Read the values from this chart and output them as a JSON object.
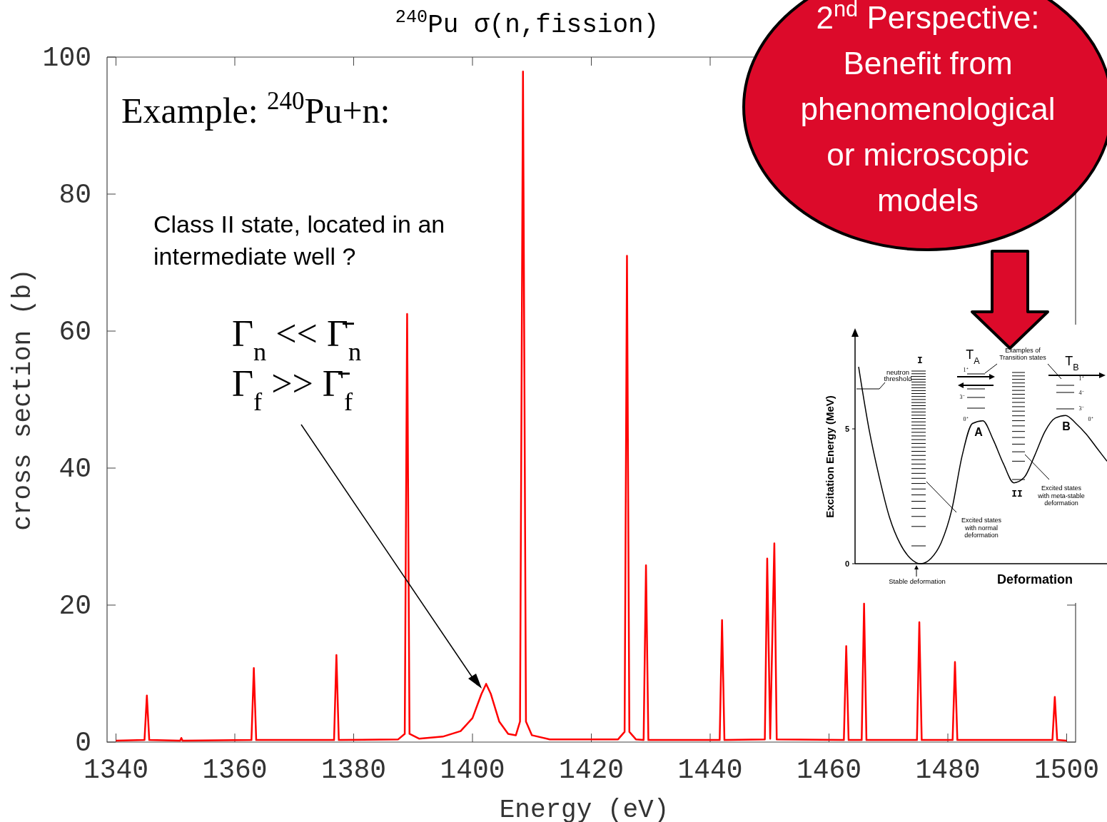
{
  "chart_data": [
    {
      "type": "line",
      "title": "$^{240}$Pu σ(n,fission)",
      "xlabel": "Energy (eV)",
      "ylabel": "cross section (b)",
      "x": [
        1340,
        1344.8,
        1345.2,
        1345.6,
        1350.8,
        1351,
        1351.2,
        1362.8,
        1363.2,
        1363.6,
        1376.7,
        1377.1,
        1377.5,
        1387.5,
        1388.6,
        1389.0,
        1389.4,
        1391,
        1395,
        1398,
        1400,
        1401.5,
        1402.3,
        1403.1,
        1404.5,
        1406,
        1407.3,
        1408.0,
        1408.5,
        1409.0,
        1410,
        1413,
        1424.5,
        1425.6,
        1426.0,
        1426.4,
        1427.5,
        1428.8,
        1429.2,
        1429.6,
        1441.6,
        1442.0,
        1442.4,
        1449.2,
        1449.6,
        1450.1,
        1450.8,
        1451.2,
        1462.5,
        1462.9,
        1463.3,
        1465.5,
        1465.9,
        1466.3,
        1474.8,
        1475.2,
        1475.6,
        1480.8,
        1481.2,
        1481.6,
        1497.6,
        1498.0,
        1498.4,
        1500
      ],
      "series": [
        {
          "color": "#ff0000",
          "values": [
            0.2,
            0.3,
            6.8,
            0.3,
            0.2,
            0.6,
            0.2,
            0.3,
            10.8,
            0.3,
            0.3,
            12.7,
            0.3,
            0.4,
            1.2,
            62.5,
            1.2,
            0.5,
            0.8,
            1.6,
            3.5,
            7,
            8.5,
            7,
            3,
            1.2,
            1,
            3,
            97.9,
            3,
            1,
            0.4,
            0.4,
            1.5,
            71,
            1.5,
            0.4,
            0.3,
            25.8,
            0.3,
            0.3,
            17.8,
            0.3,
            0.4,
            26.8,
            0.5,
            29,
            0.4,
            0.3,
            14,
            0.3,
            0.3,
            20.2,
            0.3,
            0.3,
            17.5,
            0.3,
            0.3,
            11.7,
            0.3,
            0.3,
            6.6,
            0.3,
            0.2
          ]
        }
      ],
      "xlim": [
        1338.5,
        1501.5
      ],
      "ylim": [
        0,
        100
      ],
      "xticks": [
        1340,
        1360,
        1380,
        1400,
        1420,
        1440,
        1460,
        1480,
        1500
      ],
      "yticks": [
        0,
        20,
        40,
        60,
        80,
        100
      ],
      "annotations": [
        "Example: $^{240}$Pu+n:",
        "Class II state, located in an intermediate well ?",
        "Γ$_{n}$ << Γ̄$_{n}$",
        "Γ$_{f}$ >> Γ̄$_{f}$",
        "2$^{nd}$ Perspective: Benefit from phenomenological or microscopic models"
      ]
    },
    {
      "type": "line",
      "xlabel": "Deformation",
      "ylabel": "Excitation Energy (MeV)",
      "categories": [
        null,
        null,
        null,
        null,
        null,
        null,
        null,
        null,
        null,
        null,
        null,
        null,
        null,
        null,
        null,
        null,
        null,
        null,
        null,
        null,
        null,
        null,
        null,
        null,
        null
      ],
      "series": [
        {
          "color": "#000000",
          "values": [
            7.3,
            5.0,
            3.2,
            1.7,
            0.75,
            0.2,
            0.0,
            0.2,
            0.8,
            2.0,
            4.0,
            5.2,
            5.3,
            4.6,
            3.7,
            3.0,
            3.2,
            4.0,
            4.9,
            5.4,
            5.5,
            5.2,
            4.8,
            4.3,
            3.8
          ]
        }
      ],
      "ylim": [
        0,
        8.6
      ],
      "yticks": [
        0,
        5
      ],
      "tick_labels": "y",
      "annotations": [
        "Stable deformation",
        "neutron threshold",
        "I",
        "II",
        "T$_{A}$",
        "T$_{B}$",
        "A",
        "B",
        "Examples of Transition states",
        "Excited states with normal deformation",
        "Excited states with meta-stable deformation",
        "1⁺",
        "3⁻",
        "0⁺",
        "1⁺",
        "4⁻",
        "3⁻",
        "0⁺"
      ]
    }
  ]
}
